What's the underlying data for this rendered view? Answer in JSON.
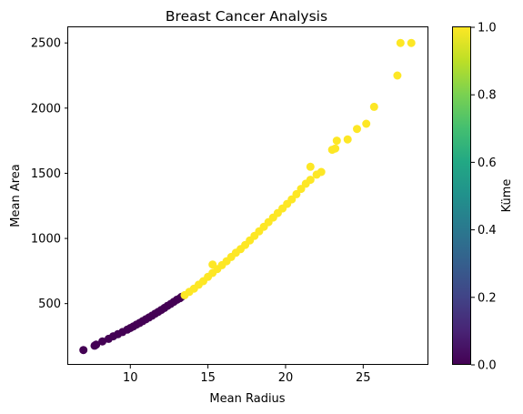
{
  "chart_data": {
    "type": "scatter",
    "title": "Breast Cancer Analysis",
    "xlabel": "Mean Radius",
    "ylabel": "Mean Area",
    "xlim": [
      6.0,
      29.2
    ],
    "ylim": [
      30,
      2620
    ],
    "xticks": [
      10,
      15,
      20,
      25
    ],
    "yticks": [
      500,
      1000,
      1500,
      2000,
      2500
    ],
    "grid": false,
    "colorbar": {
      "label": "Küme",
      "colormap": "viridis",
      "range": [
        0.0,
        1.0
      ],
      "ticks": [
        "0.0",
        "0.2",
        "0.4",
        "0.6",
        "0.8",
        "1.0"
      ]
    },
    "colors": {
      "cluster_0": "#440154",
      "cluster_1": "#fde725"
    },
    "series": [
      {
        "cluster": 0,
        "points": [
          [
            6.98,
            144
          ],
          [
            7.7,
            177
          ],
          [
            7.8,
            185
          ],
          [
            8.2,
            210
          ],
          [
            8.6,
            230
          ],
          [
            8.9,
            249
          ],
          [
            9.2,
            265
          ],
          [
            9.5,
            282
          ],
          [
            9.8,
            300
          ],
          [
            10.0,
            313
          ],
          [
            10.2,
            325
          ],
          [
            10.4,
            339
          ],
          [
            10.6,
            352
          ],
          [
            10.8,
            366
          ],
          [
            11.0,
            380
          ],
          [
            11.2,
            394
          ],
          [
            11.4,
            408
          ],
          [
            11.6,
            423
          ],
          [
            11.8,
            437
          ],
          [
            12.0,
            452
          ],
          [
            12.2,
            467
          ],
          [
            12.4,
            483
          ],
          [
            12.6,
            498
          ],
          [
            12.8,
            514
          ],
          [
            13.0,
            530
          ],
          [
            13.2,
            542
          ],
          [
            13.3,
            552
          ]
        ]
      },
      {
        "cluster": 1,
        "points": [
          [
            13.5,
            565
          ],
          [
            13.8,
            590
          ],
          [
            14.1,
            615
          ],
          [
            14.4,
            645
          ],
          [
            14.7,
            672
          ],
          [
            15.0,
            705
          ],
          [
            15.3,
            735
          ],
          [
            15.6,
            765
          ],
          [
            15.9,
            795
          ],
          [
            15.3,
            800
          ],
          [
            16.2,
            825
          ],
          [
            16.5,
            858
          ],
          [
            16.8,
            890
          ],
          [
            17.1,
            918
          ],
          [
            17.4,
            950
          ],
          [
            17.7,
            985
          ],
          [
            18.0,
            1020
          ],
          [
            18.3,
            1055
          ],
          [
            18.6,
            1090
          ],
          [
            18.9,
            1125
          ],
          [
            19.2,
            1160
          ],
          [
            19.5,
            1195
          ],
          [
            19.8,
            1230
          ],
          [
            20.1,
            1265
          ],
          [
            20.4,
            1300
          ],
          [
            20.7,
            1340
          ],
          [
            21.0,
            1380
          ],
          [
            21.3,
            1420
          ],
          [
            21.6,
            1450
          ],
          [
            21.6,
            1550
          ],
          [
            22.0,
            1490
          ],
          [
            22.3,
            1510
          ],
          [
            23.0,
            1680
          ],
          [
            23.2,
            1690
          ],
          [
            23.3,
            1750
          ],
          [
            24.0,
            1760
          ],
          [
            24.6,
            1840
          ],
          [
            25.2,
            1880
          ],
          [
            25.7,
            2010
          ],
          [
            27.2,
            2250
          ],
          [
            27.4,
            2500
          ],
          [
            28.1,
            2500
          ]
        ]
      }
    ]
  }
}
